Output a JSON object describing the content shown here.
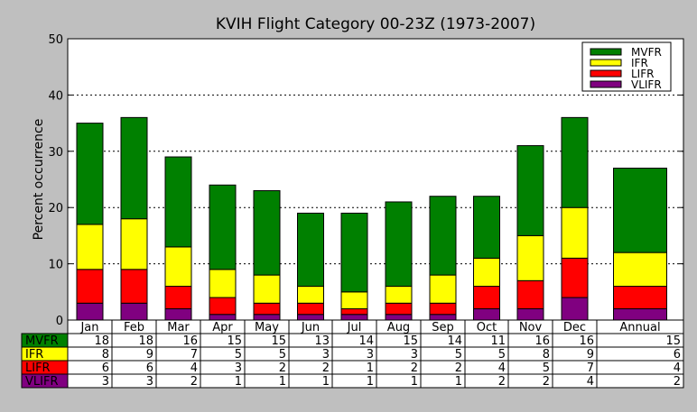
{
  "chart_data": {
    "type": "bar",
    "stacked": true,
    "title": "KVIH Flight Category 00-23Z (1973-2007)",
    "ylabel": "Percent occurrence",
    "xlabel": "",
    "ylim": [
      0,
      50
    ],
    "yticks": [
      "0",
      "10",
      "20",
      "30",
      "40",
      "50"
    ],
    "grid": true,
    "legend_position": "top-right",
    "categories": [
      "Jan",
      "Feb",
      "Mar",
      "Apr",
      "May",
      "Jun",
      "Jul",
      "Aug",
      "Sep",
      "Oct",
      "Nov",
      "Dec",
      "Annual"
    ],
    "series": [
      {
        "name": "VLIFR",
        "color": "#800080",
        "values": [
          3,
          3,
          2,
          1,
          1,
          1,
          1,
          1,
          1,
          2,
          2,
          4,
          2
        ]
      },
      {
        "name": "LIFR",
        "color": "#ff0000",
        "values": [
          6,
          6,
          4,
          3,
          2,
          2,
          1,
          2,
          2,
          4,
          5,
          7,
          4
        ]
      },
      {
        "name": "IFR",
        "color": "#ffff00",
        "values": [
          8,
          9,
          7,
          5,
          5,
          3,
          3,
          3,
          5,
          5,
          8,
          9,
          6
        ]
      },
      {
        "name": "MVFR",
        "color": "#008000",
        "values": [
          18,
          18,
          16,
          15,
          15,
          13,
          14,
          15,
          14,
          11,
          16,
          16,
          15
        ]
      }
    ],
    "legend_order": [
      "MVFR",
      "IFR",
      "LIFR",
      "VLIFR"
    ],
    "table_row_order": [
      "MVFR",
      "IFR",
      "LIFR",
      "VLIFR"
    ]
  }
}
